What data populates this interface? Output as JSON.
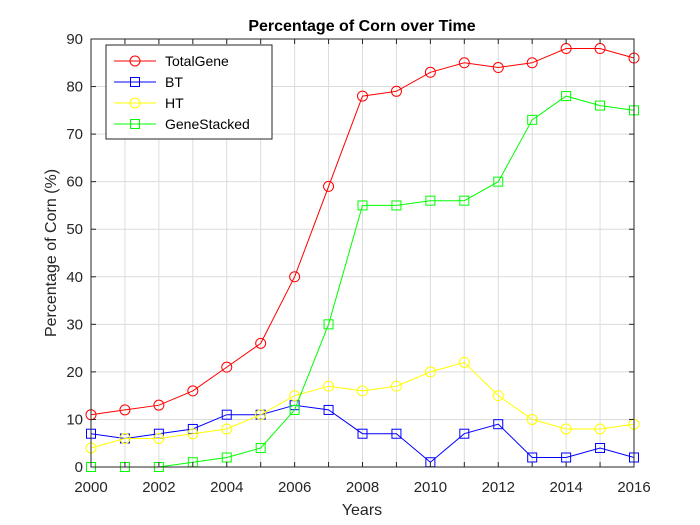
{
  "chart_data": {
    "type": "line",
    "title": "Percentage of Corn over Time",
    "xlabel": "Years",
    "ylabel": "Percentage of Corn (%)",
    "xlim": [
      2000,
      2016
    ],
    "ylim": [
      0,
      90
    ],
    "grid": true,
    "legend_position": "top-left",
    "x_ticks": [
      "2000",
      "2002",
      "2004",
      "2006",
      "2008",
      "2010",
      "2012",
      "2014",
      "2016"
    ],
    "y_ticks": [
      "0",
      "10",
      "20",
      "30",
      "40",
      "50",
      "60",
      "70",
      "80",
      "90"
    ],
    "x": [
      2000,
      2001,
      2002,
      2003,
      2004,
      2005,
      2006,
      2007,
      2008,
      2009,
      2010,
      2011,
      2012,
      2013,
      2014,
      2015,
      2016
    ],
    "series": [
      {
        "name": "TotalGene",
        "color": "#ff0000",
        "marker": "circle",
        "values": [
          11,
          12,
          13,
          16,
          21,
          26,
          40,
          59,
          78,
          79,
          83,
          85,
          84,
          85,
          88,
          88,
          86
        ]
      },
      {
        "name": "BT",
        "color": "#0000ff",
        "marker": "square",
        "values": [
          7,
          6,
          7,
          8,
          11,
          11,
          13,
          12,
          7,
          7,
          1,
          7,
          9,
          2,
          2,
          4,
          2
        ]
      },
      {
        "name": "HT",
        "color": "#ffff00",
        "marker": "circle",
        "values": [
          4,
          6,
          6,
          7,
          8,
          11,
          15,
          17,
          16,
          17,
          20,
          22,
          15,
          10,
          8,
          8,
          9
        ]
      },
      {
        "name": "GeneStacked",
        "color": "#00ff00",
        "marker": "square",
        "values": [
          0,
          0,
          0,
          1,
          2,
          4,
          12,
          30,
          55,
          55,
          56,
          56,
          60,
          73,
          78,
          76,
          75
        ]
      }
    ]
  }
}
